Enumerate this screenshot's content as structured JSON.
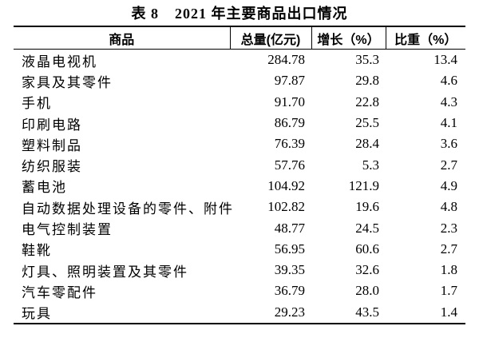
{
  "page": {
    "background": "#ffffff",
    "text_color": "#000000",
    "rule_color": "#000000"
  },
  "caption": {
    "label": "表 8",
    "title": "2021 年主要商品出口情况"
  },
  "table": {
    "columns": [
      "商品",
      "总量(亿元)",
      "增长（%）",
      "比重（%）"
    ],
    "rows": [
      {
        "name": "液晶电视机",
        "total": "284.78",
        "growth": "35.3",
        "share": "13.4"
      },
      {
        "name": "家具及其零件",
        "total": "97.87",
        "growth": "29.8",
        "share": "4.6"
      },
      {
        "name": "手机",
        "total": "91.70",
        "growth": "22.8",
        "share": "4.3"
      },
      {
        "name": "印刷电路",
        "total": "86.79",
        "growth": "25.5",
        "share": "4.1"
      },
      {
        "name": "塑料制品",
        "total": "76.39",
        "growth": "28.4",
        "share": "3.6"
      },
      {
        "name": "纺织服装",
        "total": "57.76",
        "growth": "5.3",
        "share": "2.7"
      },
      {
        "name": "蓄电池",
        "total": "104.92",
        "growth": "121.9",
        "share": "4.9"
      },
      {
        "name": "自动数据处理设备的零件、附件",
        "total": "102.82",
        "growth": "19.6",
        "share": "4.8"
      },
      {
        "name": "电气控制装置",
        "total": "48.77",
        "growth": "24.5",
        "share": "2.3"
      },
      {
        "name": "鞋靴",
        "total": "56.95",
        "growth": "60.6",
        "share": "2.7"
      },
      {
        "name": "灯具、照明装置及其零件",
        "total": "39.35",
        "growth": "32.6",
        "share": "1.8"
      },
      {
        "name": "汽车零配件",
        "total": "36.79",
        "growth": "28.0",
        "share": "1.7"
      },
      {
        "name": "玩具",
        "total": "29.23",
        "growth": "43.5",
        "share": "1.4"
      }
    ]
  }
}
